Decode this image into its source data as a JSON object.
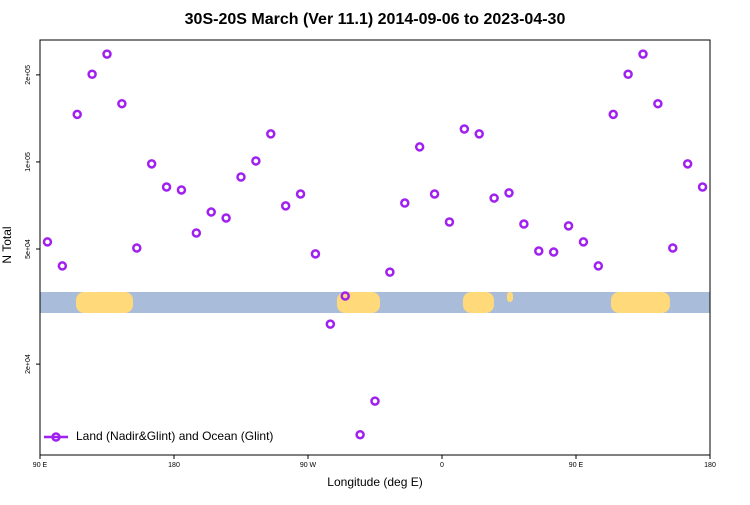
{
  "chart_data": {
    "type": "scatter",
    "title": "30S-20S March (Ver 11.1)   2014-09-06 to 2023-04-30",
    "x_label": "Longitude (deg E)",
    "y_label": "N Total",
    "x": [
      95,
      105,
      115,
      125,
      135,
      145,
      155,
      165,
      175,
      185,
      195,
      205,
      215,
      225,
      235,
      245,
      255,
      265,
      275,
      285,
      295,
      305,
      315,
      325,
      335,
      345,
      355,
      365,
      375,
      385,
      395,
      405,
      415,
      425,
      435,
      445,
      455,
      465,
      475,
      485,
      495,
      505,
      515,
      525,
      535
    ],
    "series": [
      {
        "name": "Land (Nadir&Glint) and Ocean (Glint)",
        "color": "#a020f0",
        "values": [
          52900,
          43700,
          146000,
          201000,
          236000,
          159000,
          50400,
          98500,
          81900,
          80000,
          56800,
          67100,
          64000,
          88700,
          100800,
          125000,
          70500,
          77500,
          48100,
          27500,
          34400,
          11400,
          14900,
          41600,
          72100,
          112700,
          77500,
          62000,
          130000,
          125000,
          75000,
          78200,
          61000,
          49200,
          48800,
          60100,
          52900,
          43700,
          146000,
          201000,
          236000,
          159000,
          50400,
          98500,
          81900
        ]
      }
    ],
    "xlim": [
      90,
      540
    ],
    "xticks": [
      {
        "value": 90,
        "label": "90 E"
      },
      {
        "value": 180,
        "label": "180"
      },
      {
        "value": 270,
        "label": "90 W"
      },
      {
        "value": 360,
        "label": "0"
      },
      {
        "value": 450,
        "label": "90 E"
      },
      {
        "value": 540,
        "label": "180"
      }
    ],
    "ylim": [
      9700,
      264000
    ],
    "log_y": true,
    "yticks": [
      {
        "value": 20000,
        "label": "2e+04"
      },
      {
        "value": 50000,
        "label": "5e+04"
      },
      {
        "value": 100000,
        "label": "1e+05"
      },
      {
        "value": 200000,
        "label": "2e+05"
      }
    ],
    "legend": "bottom-left"
  }
}
